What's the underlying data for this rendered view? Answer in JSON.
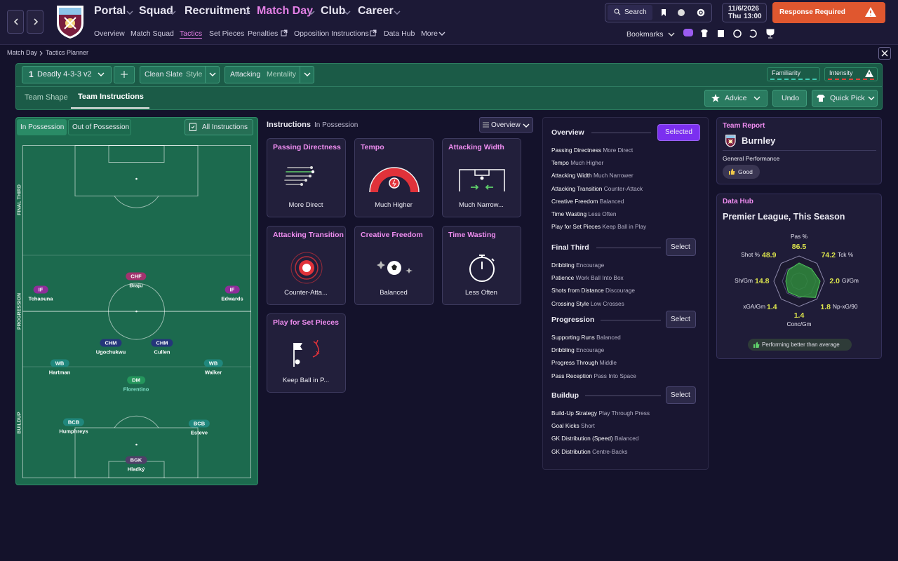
{
  "nav": {
    "menus": [
      "Portal",
      "Squad",
      "Recruitment",
      "Match Day",
      "Club",
      "Career"
    ],
    "submenu": [
      "Overview",
      "Match Squad",
      "Tactics",
      "Set Pieces",
      "Penalties",
      "Opposition Instructions",
      "Data Hub",
      "More"
    ],
    "search": "Search",
    "date": "11/6/2026",
    "day": "Thu",
    "time": "13:00",
    "alert": "Response Required",
    "bookmarks": "Bookmarks"
  },
  "breadcrumb": [
    "Match Day",
    "Tactics Planner"
  ],
  "toolbar": {
    "tactic_number": "1",
    "tactic": "Deadly 4-3-3 v2",
    "style_value": "Clean Slate",
    "style_label": "Style",
    "mentality_value": "Attacking",
    "mentality_label": "Mentality",
    "familiarity": "Familiarity",
    "intensity": "Intensity"
  },
  "tabs": [
    "Team Shape",
    "Team Instructions"
  ],
  "actions": [
    "Advice",
    "Undo",
    "Quick Pick"
  ],
  "pitch": {
    "tabs": [
      "In Possession",
      "Out of Possession"
    ],
    "all_instructions": "All Instructions",
    "zones": [
      "FINAL THIRD",
      "PROGRESSION",
      "BUILDUP"
    ],
    "players": [
      {
        "role": "CHF",
        "name": "Braju"
      },
      {
        "role": "IF",
        "name": "Tchaouna"
      },
      {
        "role": "IF",
        "name": "Edwards"
      },
      {
        "role": "CHM",
        "name": "Ugochukwu"
      },
      {
        "role": "CHM",
        "name": "Cullen"
      },
      {
        "role": "WB",
        "name": "Hartman"
      },
      {
        "role": "WB",
        "name": "Walker"
      },
      {
        "role": "DM",
        "name": "Florentino"
      },
      {
        "role": "BCB",
        "name": "Humphreys"
      },
      {
        "role": "BCB",
        "name": "Esteve"
      },
      {
        "role": "BGK",
        "name": "Hladký"
      }
    ]
  },
  "instructions": {
    "title": "Instructions",
    "subtitle": "In Possession",
    "view": "Overview",
    "cards": [
      {
        "title": "Passing Directness",
        "value": "More Direct"
      },
      {
        "title": "Tempo",
        "value": "Much Higher"
      },
      {
        "title": "Attacking Width",
        "value": "Much Narrow..."
      },
      {
        "title": "Attacking Transition",
        "value": "Counter-Atta..."
      },
      {
        "title": "Creative Freedom",
        "value": "Balanced"
      },
      {
        "title": "Time Wasting",
        "value": "Less Often"
      },
      {
        "title": "Play for Set Pieces",
        "value": "Keep Ball in P..."
      }
    ]
  },
  "overview": {
    "title": "Overview",
    "button": "Selected",
    "items": [
      {
        "label": "Passing Directness",
        "value": "More Direct"
      },
      {
        "label": "Tempo",
        "value": "Much Higher"
      },
      {
        "label": "Attacking Width",
        "value": "Much Narrower"
      },
      {
        "label": "Attacking Transition",
        "value": "Counter-Attack"
      },
      {
        "label": "Creative Freedom",
        "value": "Balanced"
      },
      {
        "label": "Time Wasting",
        "value": "Less Often"
      },
      {
        "label": "Play for Set Pieces",
        "value": "Keep Ball in Play"
      }
    ],
    "sections": [
      {
        "title": "Final Third",
        "button": "Select",
        "items": [
          {
            "label": "Dribbling",
            "value": "Encourage"
          },
          {
            "label": "Patience",
            "value": "Work Ball Into Box"
          },
          {
            "label": "Shots from Distance",
            "value": "Discourage"
          },
          {
            "label": "Crossing Style",
            "value": "Low Crosses"
          }
        ]
      },
      {
        "title": "Progression",
        "button": "Select",
        "items": [
          {
            "label": "Supporting Runs",
            "value": "Balanced"
          },
          {
            "label": "Dribbling",
            "value": "Encourage"
          },
          {
            "label": "Progress Through",
            "value": "Middle"
          },
          {
            "label": "Pass Reception",
            "value": "Pass Into Space"
          }
        ]
      },
      {
        "title": "Buildup",
        "button": "Select",
        "items": [
          {
            "label": "Build-Up Strategy",
            "value": "Play Through Press"
          },
          {
            "label": "Goal Kicks",
            "value": "Short"
          },
          {
            "label": "GK Distribution (Speed)",
            "value": "Balanced"
          },
          {
            "label": "GK Distribution",
            "value": "Centre-Backs"
          }
        ]
      }
    ]
  },
  "team_report": {
    "title": "Team Report",
    "team": "Burnley",
    "label": "General Performance",
    "rating": "Good"
  },
  "data_hub": {
    "title": "Data Hub",
    "subtitle": "Premier League, This Season",
    "stats": [
      {
        "label": "Pas %",
        "value": 86.5
      },
      {
        "label": "Tck %",
        "value": 74.2
      },
      {
        "label": "Gl/Gm",
        "value": 2,
        "value_label": "2.0"
      },
      {
        "label": "Np-xG/90",
        "value": 1.8
      },
      {
        "label": "Conc/Gm",
        "value": 1.4
      },
      {
        "label": "xGA/Gm",
        "value": 1.4
      },
      {
        "label": "Sh/Gm",
        "value": 14.8
      },
      {
        "label": "Shot %",
        "value": 48.9
      }
    ],
    "note": "Performing better than average"
  }
}
